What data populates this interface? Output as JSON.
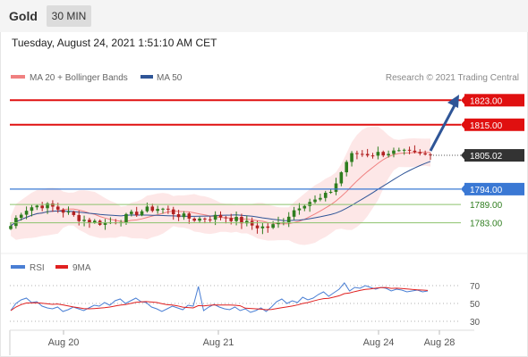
{
  "header": {
    "symbol": "Gold",
    "interval": "30 MIN",
    "timestamp": "Tuesday, August 24, 2021 1:51:10 AM CET"
  },
  "legend": {
    "ma20": {
      "label": "MA 20 + Bollinger Bands",
      "color": "#f08080"
    },
    "ma50": {
      "label": "MA 50",
      "color": "#2f5597"
    },
    "rsi": {
      "label": "RSI",
      "color": "#4a7fd4"
    },
    "rsi_ma": {
      "label": "9MA",
      "color": "#e02020"
    }
  },
  "credit": "Research © 2021 Trading Central",
  "colors": {
    "resistance": "#e01010",
    "current": "#333333",
    "pivot": "#3a78d4",
    "support": "#8cc36c",
    "support_text": "#2e7d1e",
    "candle_up": "#2e7d1e",
    "candle_down": "#b22222",
    "band_fill": "#fde3e3",
    "arrow": "#2f5597"
  },
  "chart_data": [
    {
      "type": "candlestick",
      "title": "Gold 30 MIN",
      "x_ticks": [
        "Aug 20",
        "Aug 21",
        "Aug 24",
        "Aug 28"
      ],
      "ylim": [
        1776.5,
        1826
      ],
      "levels": [
        {
          "name": "resistance",
          "value": "1823.00",
          "role": "resistance"
        },
        {
          "name": "resistance",
          "value": "1815.00",
          "role": "resistance"
        },
        {
          "name": "current",
          "value": "1805.02",
          "role": "current"
        },
        {
          "name": "pivot",
          "value": "1794.00",
          "role": "pivot"
        },
        {
          "name": "support",
          "value": "1789.00",
          "role": "support"
        },
        {
          "name": "support",
          "value": "1783.00",
          "role": "support"
        }
      ],
      "series_names": [
        "MA 20 + Bollinger Bands",
        "MA 50"
      ],
      "close_approx": [
        1782.0,
        1784.5,
        1786.5,
        1787.5,
        1788.2,
        1788.6,
        1788.7,
        1788.5,
        1788.1,
        1787.5,
        1786.8,
        1786.0,
        1785.2,
        1784.5,
        1784.0,
        1783.6,
        1783.3,
        1783.1,
        1783.0,
        1783.2,
        1783.6,
        1784.2,
        1784.9,
        1785.6,
        1786.3,
        1786.9,
        1787.3,
        1787.6,
        1787.7,
        1787.5,
        1787.0,
        1786.3,
        1785.6,
        1785.0,
        1784.5,
        1784.3,
        1784.3,
        1784.5,
        1784.8,
        1785.0,
        1785.1,
        1784.9,
        1784.5,
        1784.0,
        1783.4,
        1782.8,
        1782.2,
        1781.8,
        1781.6,
        1781.6,
        1782.0,
        1782.8,
        1784.0,
        1785.6,
        1787.2,
        1788.6,
        1789.5,
        1790.0,
        1790.2,
        1790.8,
        1791.8,
        1793.5,
        1796.0,
        1799.5,
        1803.0,
        1805.0,
        1805.6,
        1805.6,
        1805.5,
        1805.5,
        1805.6,
        1805.8,
        1806.0,
        1806.0,
        1805.9,
        1805.8,
        1805.6,
        1805.3,
        1805.1,
        1805.0,
        1805.02
      ]
    },
    {
      "type": "line",
      "title": "RSI",
      "series_names": [
        "RSI",
        "9MA"
      ],
      "ylim": [
        25,
        75
      ],
      "y_ticks": [
        "70",
        "50",
        "30"
      ],
      "rsi_approx": [
        42,
        50,
        54,
        56,
        51,
        52,
        47,
        45,
        44,
        46,
        41,
        43,
        46,
        44,
        42,
        45,
        48,
        47,
        51,
        48,
        53,
        55,
        50,
        53,
        56,
        52,
        51,
        46,
        44,
        41,
        44,
        47,
        45,
        43,
        48,
        47,
        69,
        42,
        46,
        49,
        46,
        44,
        43,
        46,
        42,
        44,
        40,
        42,
        45,
        41,
        46,
        52,
        55,
        50,
        53,
        51,
        57,
        54,
        56,
        60,
        63,
        58,
        62,
        66,
        73,
        64,
        68,
        67,
        70,
        68,
        66,
        68,
        67,
        64,
        66,
        65,
        63,
        64,
        65,
        63,
        64
      ]
    }
  ]
}
